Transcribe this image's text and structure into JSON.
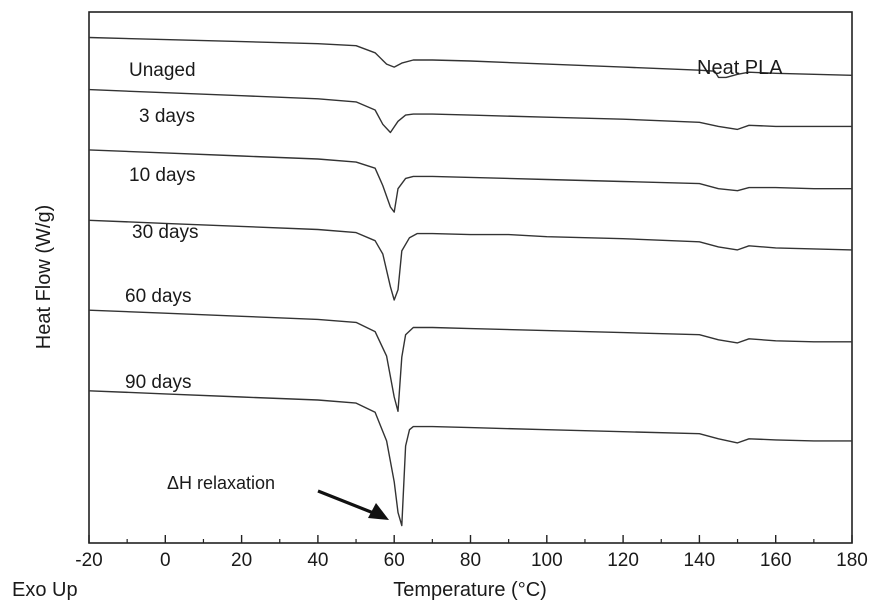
{
  "chart_data": {
    "type": "line",
    "title": "Neat PLA",
    "xlabel": "Temperature (°C)",
    "ylabel": "Heat Flow (W/g)",
    "corner_label": "Exo Up",
    "xlim": [
      -20,
      180
    ],
    "x_ticks": [
      -20,
      0,
      20,
      40,
      60,
      80,
      100,
      120,
      140,
      160,
      180
    ],
    "grid": false,
    "y_units": "offset heat flow (arbitrary, curves stacked)",
    "series": [
      {
        "name": "Unaged",
        "x": [
          -20,
          0,
          20,
          40,
          50,
          55,
          58,
          60,
          62,
          65,
          70,
          80,
          100,
          120,
          140,
          144,
          145,
          147,
          150,
          153,
          160,
          170,
          180
        ],
        "y": [
          0,
          -0.04,
          -0.08,
          -0.12,
          -0.16,
          -0.3,
          -0.52,
          -0.58,
          -0.5,
          -0.44,
          -0.44,
          -0.46,
          -0.52,
          -0.58,
          -0.64,
          -0.66,
          -0.78,
          -0.78,
          -0.72,
          -0.68,
          -0.7,
          -0.72,
          -0.74
        ]
      },
      {
        "name": "3 days",
        "x": [
          -20,
          0,
          20,
          40,
          50,
          55,
          57,
          59,
          61,
          63,
          65,
          70,
          80,
          100,
          120,
          140,
          145,
          150,
          153,
          160,
          170,
          180
        ],
        "y": [
          -1.02,
          -1.08,
          -1.14,
          -1.2,
          -1.26,
          -1.42,
          -1.7,
          -1.86,
          -1.64,
          -1.52,
          -1.5,
          -1.5,
          -1.52,
          -1.56,
          -1.6,
          -1.66,
          -1.74,
          -1.8,
          -1.72,
          -1.74,
          -1.74,
          -1.74
        ]
      },
      {
        "name": "10 days",
        "x": [
          -20,
          0,
          20,
          40,
          50,
          55,
          57,
          59,
          60,
          61,
          63,
          65,
          70,
          80,
          100,
          120,
          140,
          145,
          150,
          153,
          160,
          170,
          180
        ],
        "y": [
          -2.2,
          -2.26,
          -2.32,
          -2.38,
          -2.44,
          -2.56,
          -2.9,
          -3.32,
          -3.42,
          -2.96,
          -2.76,
          -2.72,
          -2.72,
          -2.74,
          -2.78,
          -2.82,
          -2.86,
          -2.96,
          -3.0,
          -2.94,
          -2.94,
          -2.96,
          -2.96
        ]
      },
      {
        "name": "30 days",
        "x": [
          -20,
          0,
          20,
          40,
          50,
          55,
          57,
          59,
          60,
          61,
          62,
          64,
          66,
          70,
          80,
          90,
          100,
          120,
          140,
          145,
          150,
          153,
          160,
          170,
          180
        ],
        "y": [
          -3.58,
          -3.64,
          -3.7,
          -3.76,
          -3.82,
          -3.98,
          -4.24,
          -4.88,
          -5.14,
          -4.94,
          -4.18,
          -3.92,
          -3.84,
          -3.84,
          -3.86,
          -3.86,
          -3.9,
          -3.94,
          -4.0,
          -4.1,
          -4.16,
          -4.08,
          -4.12,
          -4.14,
          -4.16
        ]
      },
      {
        "name": "60 days",
        "x": [
          -20,
          0,
          20,
          40,
          50,
          55,
          58,
          60,
          61,
          62,
          63,
          65,
          70,
          80,
          100,
          120,
          140,
          145,
          150,
          153,
          160,
          170,
          180
        ],
        "y": [
          -5.34,
          -5.4,
          -5.46,
          -5.52,
          -5.58,
          -5.76,
          -6.24,
          -7.04,
          -7.32,
          -6.26,
          -5.82,
          -5.68,
          -5.68,
          -5.7,
          -5.74,
          -5.78,
          -5.82,
          -5.92,
          -5.98,
          -5.9,
          -5.94,
          -5.96,
          -5.96
        ]
      },
      {
        "name": "90 days",
        "x": [
          -20,
          0,
          20,
          40,
          50,
          55,
          58,
          60,
          61,
          62,
          63,
          64,
          65,
          70,
          80,
          100,
          120,
          140,
          145,
          150,
          153,
          160,
          170,
          180
        ],
        "y": [
          -6.92,
          -6.98,
          -7.04,
          -7.1,
          -7.16,
          -7.34,
          -7.9,
          -8.7,
          -9.3,
          -9.56,
          -8.0,
          -7.68,
          -7.62,
          -7.62,
          -7.64,
          -7.68,
          -7.72,
          -7.76,
          -7.86,
          -7.94,
          -7.86,
          -7.88,
          -7.9,
          -7.9
        ]
      }
    ],
    "annotations": [
      {
        "text": "ΔH relaxation",
        "points_to": {
          "x": 62,
          "series": "90 days"
        }
      }
    ]
  }
}
